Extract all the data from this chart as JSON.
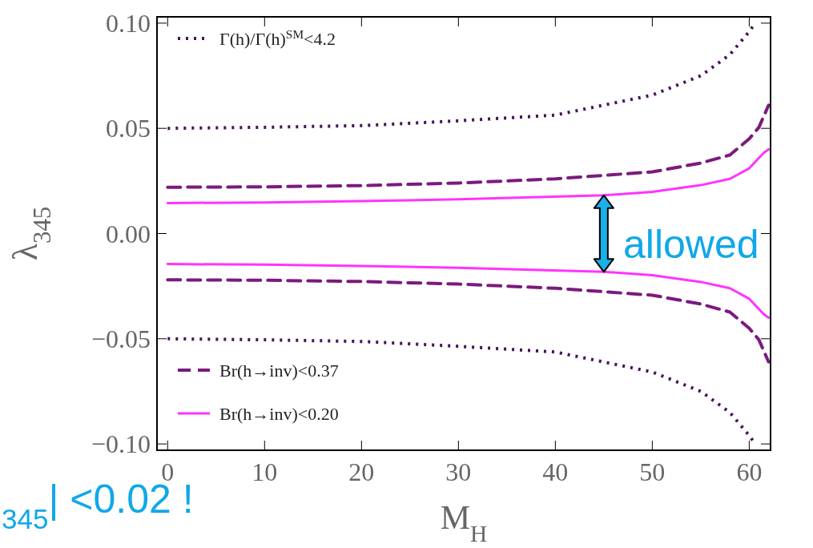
{
  "chart_data": {
    "type": "line",
    "xlabel": "M$_{H}$",
    "ylabel": "λ$_{345}$",
    "xlim": [
      -1.1,
      62.2
    ],
    "ylim": [
      -0.103,
      0.103
    ],
    "xticks": [
      0,
      10,
      20,
      30,
      40,
      50,
      60
    ],
    "yticks": [
      {
        "value": -0.1,
        "label": "−0.10"
      },
      {
        "value": -0.05,
        "label": "−0.05"
      },
      {
        "value": 0,
        "label": "0.00"
      },
      {
        "value": 0.05,
        "label": "0.05"
      },
      {
        "value": 0.1,
        "label": "0.10"
      }
    ],
    "grid": false,
    "legend": "left",
    "series": [
      {
        "name": "Γ(h)/Γ(h)$^{SM}$<4.2",
        "color": "#4b0f5c",
        "line_style": "dotted",
        "x": [
          0,
          10,
          20,
          30,
          40,
          50,
          55,
          58,
          60,
          60.6
        ],
        "values": [
          0.05,
          0.0505,
          0.0513,
          0.0536,
          0.0563,
          0.0658,
          0.075,
          0.085,
          0.096,
          0.1
        ]
      },
      {
        "color": "#4b0f5c",
        "line_style": "dotted",
        "x": [
          0,
          10,
          20,
          30,
          40,
          50,
          55,
          58,
          60,
          60.6
        ],
        "values": [
          -0.05,
          -0.0505,
          -0.0513,
          -0.0536,
          -0.0563,
          -0.0658,
          -0.075,
          -0.085,
          -0.096,
          -0.1
        ]
      },
      {
        "color": "#7a1a7e",
        "line_style": "dashed",
        "x": [
          0,
          10,
          20,
          30,
          40,
          50,
          55,
          58,
          60,
          61,
          62
        ],
        "values": [
          0.022,
          0.0222,
          0.0228,
          0.024,
          0.026,
          0.0293,
          0.0335,
          0.0373,
          0.045,
          0.0505,
          0.061
        ]
      },
      {
        "name": "Br(h→inv)<0.37",
        "color": "#7a1a7e",
        "line_style": "dashed",
        "x": [
          0,
          10,
          20,
          30,
          40,
          50,
          55,
          58,
          60,
          61,
          62
        ],
        "values": [
          -0.022,
          -0.0222,
          -0.0228,
          -0.024,
          -0.026,
          -0.0293,
          -0.0335,
          -0.0373,
          -0.045,
          -0.0505,
          -0.061
        ]
      },
      {
        "color": "#ff33ff",
        "line_style": "solid",
        "x": [
          0,
          10,
          20,
          30,
          45,
          50,
          55,
          58,
          60,
          61.5,
          62
        ],
        "values": [
          0.0145,
          0.0148,
          0.0154,
          0.0163,
          0.0182,
          0.0198,
          0.023,
          0.026,
          0.031,
          0.0384,
          0.04
        ]
      },
      {
        "name": "Br(h→inv)<0.20",
        "color": "#ff33ff",
        "line_style": "solid",
        "x": [
          0,
          10,
          20,
          30,
          45,
          50,
          55,
          58,
          60,
          61.5,
          62
        ],
        "values": [
          -0.0145,
          -0.0148,
          -0.0154,
          -0.0163,
          -0.0182,
          -0.0198,
          -0.023,
          -0.026,
          -0.031,
          -0.0384,
          -0.04
        ]
      }
    ],
    "annotations": [
      "allowed",
      "$_{345}$| <0.02 !"
    ]
  }
}
